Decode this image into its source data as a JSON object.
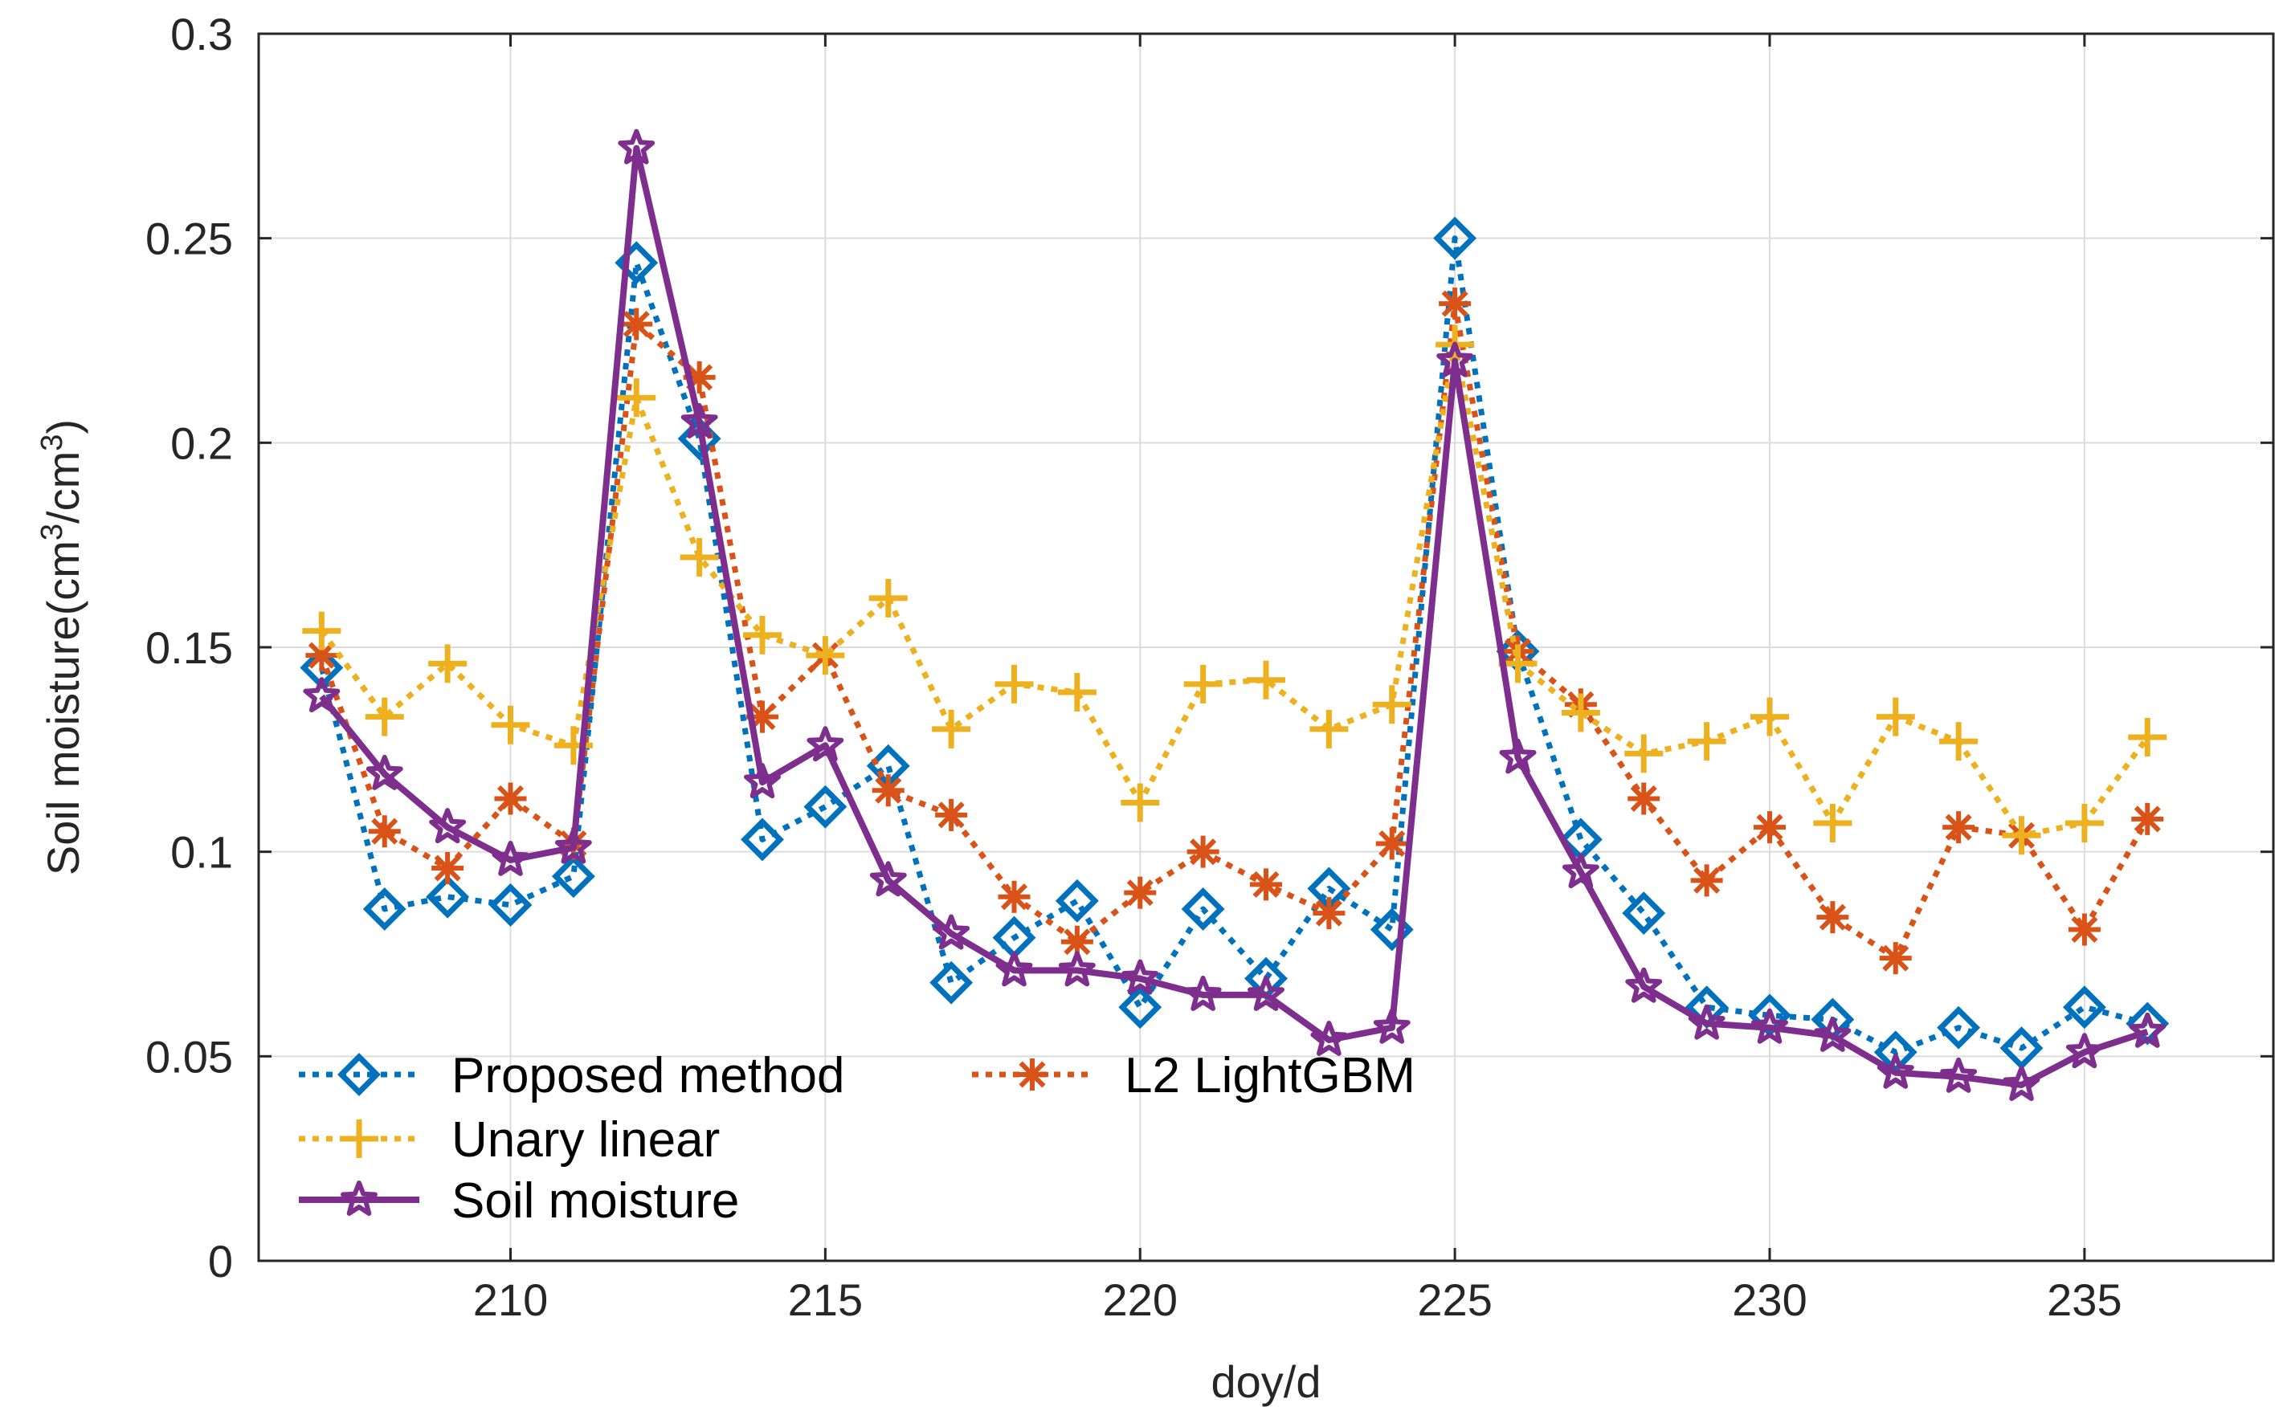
{
  "chart_data": {
    "type": "line",
    "title": "",
    "xlabel": "doy/d",
    "ylabel": "Soil moisture(cm3/cm3)",
    "ylabel_parts": {
      "base": "Soil moisture(cm",
      "sup1": "3",
      "mid": "/cm",
      "sup2": "3",
      "end": ")"
    },
    "xlim": [
      206,
      238
    ],
    "ylim": [
      0,
      0.3
    ],
    "grid": true,
    "x_ticks": [
      210,
      215,
      220,
      225,
      230,
      235
    ],
    "x_tick_labels": [
      "210",
      "215",
      "220",
      "225",
      "230",
      "235"
    ],
    "y_ticks": [
      0,
      0.05,
      0.1,
      0.15,
      0.2,
      0.25,
      0.3
    ],
    "y_tick_labels": [
      "0",
      "0.05",
      "0.1",
      "0.15",
      "0.2",
      "0.25",
      "0.3"
    ],
    "legend_position": "bottom-left",
    "x": [
      207,
      208,
      209,
      210,
      211,
      212,
      213,
      214,
      215,
      216,
      217,
      218,
      219,
      220,
      221,
      222,
      223,
      224,
      225,
      226,
      227,
      228,
      229,
      230,
      231,
      232,
      233,
      234,
      235,
      236
    ],
    "series": [
      {
        "name": "Proposed method",
        "color": "#0072BD",
        "line": "dotted",
        "marker": "diamond",
        "values": [
          0.145,
          0.086,
          0.089,
          0.087,
          0.094,
          0.244,
          0.201,
          0.103,
          0.111,
          0.121,
          0.068,
          0.079,
          0.088,
          0.062,
          0.086,
          0.069,
          0.091,
          0.081,
          0.25,
          0.149,
          0.103,
          0.085,
          0.062,
          0.06,
          0.059,
          0.051,
          0.057,
          0.052,
          0.062,
          0.058
        ]
      },
      {
        "name": "L2 LightGBM",
        "color": "#D95319",
        "line": "dotted",
        "marker": "asterisk",
        "values": [
          0.148,
          0.105,
          0.096,
          0.113,
          0.102,
          0.229,
          0.216,
          0.133,
          0.148,
          0.115,
          0.109,
          0.089,
          0.078,
          0.09,
          0.1,
          0.092,
          0.085,
          0.102,
          0.234,
          0.149,
          0.136,
          0.113,
          0.093,
          0.106,
          0.084,
          0.074,
          0.106,
          0.104,
          0.081,
          0.108
        ]
      },
      {
        "name": "Unary linear",
        "color": "#EDB120",
        "line": "dotted",
        "marker": "plus",
        "values": [
          0.154,
          0.133,
          0.146,
          0.131,
          0.126,
          0.211,
          0.172,
          0.153,
          0.148,
          0.162,
          0.13,
          0.141,
          0.139,
          0.112,
          0.141,
          0.142,
          0.13,
          0.136,
          0.224,
          0.146,
          0.134,
          0.124,
          0.127,
          0.133,
          0.107,
          0.133,
          0.127,
          0.104,
          0.107,
          0.128
        ]
      },
      {
        "name": "Soil moisture",
        "color": "#7E2F8E",
        "line": "solid",
        "marker": "star",
        "values": [
          0.138,
          0.119,
          0.106,
          0.098,
          0.101,
          0.272,
          0.205,
          0.117,
          0.126,
          0.093,
          0.08,
          0.071,
          0.071,
          0.069,
          0.065,
          0.065,
          0.054,
          0.057,
          0.22,
          0.123,
          0.095,
          0.067,
          0.058,
          0.057,
          0.055,
          0.046,
          0.045,
          0.043,
          0.051,
          0.056
        ]
      }
    ]
  }
}
